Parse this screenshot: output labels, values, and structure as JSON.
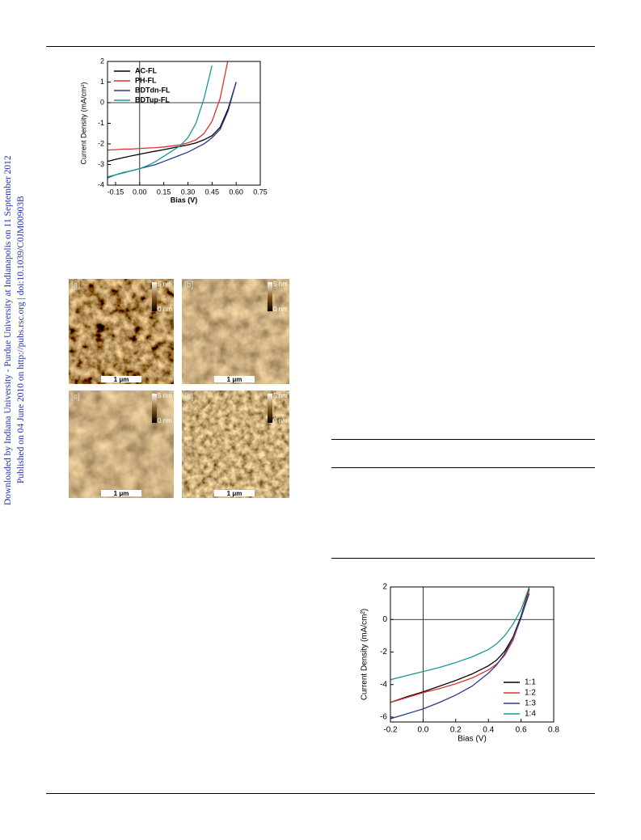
{
  "side_text": [
    "Downloaded by Indiana University - Purdue University at Indianapolis on 11 September 2012",
    "Published on 04 June 2010 on http://pubs.rsc.org | doi:10.1039/C0JM00903B"
  ],
  "afm_panels": [
    {
      "label": "[a]",
      "scale": "1 μm",
      "bar_top": "5 nm",
      "bar_bottom": "0 nm"
    },
    {
      "label": "[b]",
      "scale": "1 μm",
      "bar_top": "5 nm",
      "bar_bottom": "0 nm"
    },
    {
      "label": "[c]",
      "scale": "1 μm",
      "bar_top": "5 nm",
      "bar_bottom": "0 nm"
    },
    {
      "label": "[d]",
      "scale": "1 μm",
      "bar_top": "5 nm",
      "bar_bottom": "0 nm"
    }
  ],
  "chart_data": [
    {
      "type": "line",
      "xlabel": "Bias (V)",
      "ylabel": "Current Density (mA/cm²)",
      "legend": "upper left",
      "zero_lines": true,
      "x": [
        -0.2,
        -0.15,
        -0.1,
        -0.05,
        0,
        0.05,
        0.1,
        0.15,
        0.2,
        0.25,
        0.3,
        0.35,
        0.4,
        0.45,
        0.5,
        0.55,
        0.6,
        0.65
      ],
      "xlim": [
        -0.2,
        0.75
      ],
      "ylim": [
        -4,
        2
      ],
      "xticks": [
        -0.15,
        {
          "value": 0,
          "label": "0.00"
        },
        0.15,
        {
          "value": 0.3,
          "label": "0.30"
        },
        0.45,
        {
          "value": 0.6,
          "label": "0.60"
        },
        0.75
      ],
      "yticks": [
        -4,
        -3,
        -2,
        -1,
        0,
        1,
        2
      ],
      "series": [
        {
          "name": "AC-FL",
          "color": "#000000",
          "values": [
            -2.85,
            -2.75,
            -2.66,
            -2.58,
            -2.5,
            -2.42,
            -2.35,
            -2.28,
            -2.2,
            -2.12,
            -2.05,
            -1.95,
            -1.8,
            -1.6,
            -1.2,
            -0.3,
            1.0,
            null
          ]
        },
        {
          "name": "PH-FL",
          "color": "#e0302c",
          "values": [
            -2.3,
            -2.28,
            -2.25,
            -2.25,
            -2.22,
            -2.2,
            -2.18,
            -2.15,
            -2.1,
            -2.05,
            -1.95,
            -1.8,
            -1.5,
            -0.9,
            0.2,
            2.1,
            null,
            null
          ]
        },
        {
          "name": "BDTdn-FL",
          "color": "#2b3a8c",
          "values": [
            -3.65,
            -3.5,
            -3.4,
            -3.3,
            -3.2,
            -3.1,
            -3.0,
            -2.85,
            -2.7,
            -2.55,
            -2.4,
            -2.2,
            -2.0,
            -1.7,
            -1.3,
            -0.4,
            1.0,
            null
          ]
        },
        {
          "name": "BDTup-FL",
          "color": "#159a96",
          "values": [
            -3.6,
            -3.5,
            -3.38,
            -3.3,
            -3.2,
            -3.05,
            -2.85,
            -2.6,
            -2.35,
            -2.1,
            -1.7,
            -1.0,
            0.2,
            1.8,
            null,
            null,
            null,
            null
          ]
        }
      ]
    },
    {
      "type": "line",
      "xlabel": "Bias (V)",
      "ylabel": "Current Density (mA/cm²)",
      "legend": "lower right",
      "zero_lines": true,
      "x": [
        -0.2,
        -0.1,
        0,
        0.1,
        0.2,
        0.3,
        0.4,
        0.45,
        0.5,
        0.55,
        0.6,
        0.65,
        0.7
      ],
      "xlim": [
        -0.2,
        0.8
      ],
      "ylim": [
        -6.3,
        2
      ],
      "xticks": [
        -0.2,
        {
          "value": 0,
          "label": "0.0"
        },
        0.2,
        0.4,
        0.6,
        0.8
      ],
      "yticks": [
        -6,
        -4,
        -2,
        0,
        2
      ],
      "series": [
        {
          "name": "1:1",
          "color": "#000000",
          "values": [
            -5.1,
            -4.75,
            -4.45,
            -4.1,
            -3.75,
            -3.35,
            -2.85,
            -2.5,
            -1.95,
            -1.1,
            0.2,
            1.9,
            null
          ]
        },
        {
          "name": "1:2",
          "color": "#e0302c",
          "values": [
            -5.1,
            -4.8,
            -4.5,
            -4.25,
            -3.95,
            -3.6,
            -3.1,
            -2.75,
            -2.2,
            -1.3,
            0.1,
            1.8,
            null
          ]
        },
        {
          "name": "1:3",
          "color": "#2b3a8c",
          "values": [
            -6.1,
            -5.8,
            -5.5,
            -5.1,
            -4.65,
            -4.1,
            -3.3,
            -2.8,
            -2.1,
            -1.15,
            0.1,
            1.6,
            null
          ]
        },
        {
          "name": "1:4",
          "color": "#159a96",
          "values": [
            -3.7,
            -3.45,
            -3.2,
            -2.95,
            -2.65,
            -2.3,
            -1.85,
            -1.5,
            -1.0,
            -0.3,
            0.6,
            2.0,
            null
          ]
        }
      ]
    }
  ]
}
